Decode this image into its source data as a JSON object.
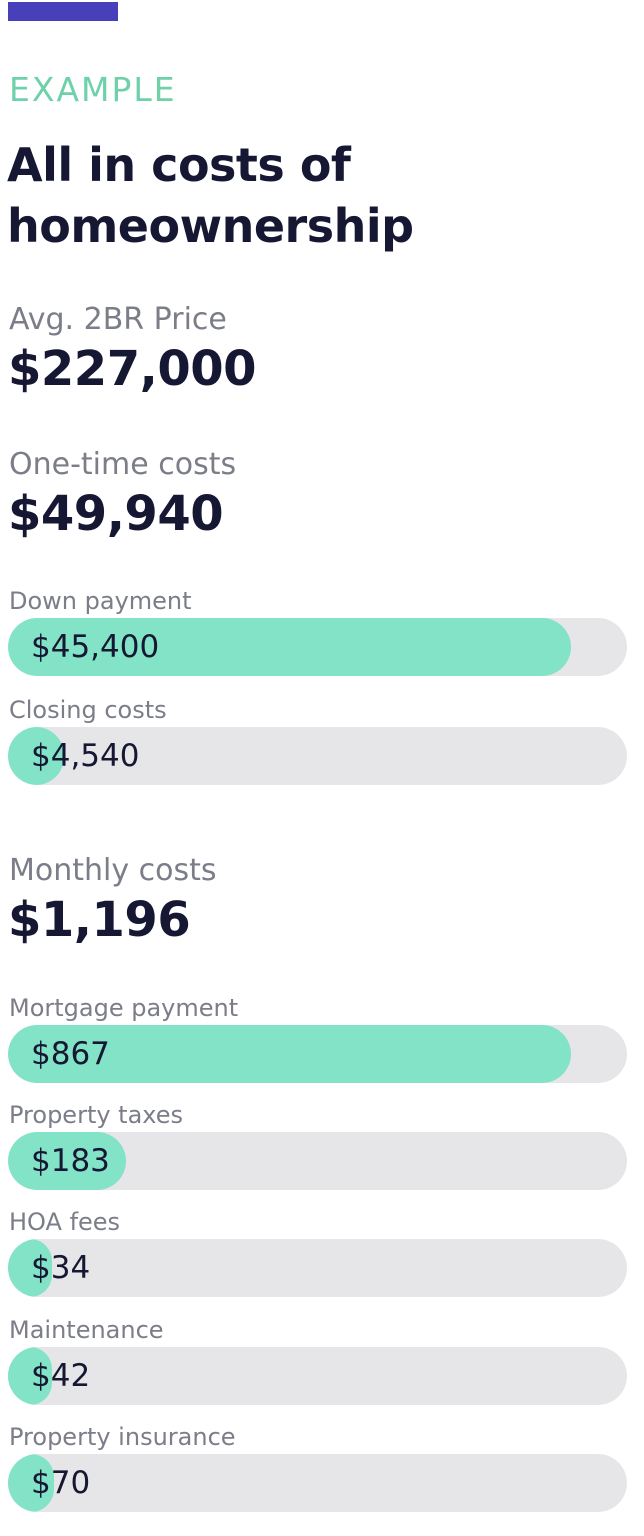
{
  "header": {
    "eyebrow": "EXAMPLE",
    "title_line1": "All in costs of",
    "title_line2": "homeownership"
  },
  "price": {
    "label": "Avg. 2BR Price",
    "value": "$227,000"
  },
  "one_time": {
    "label": "One-time costs",
    "total": "$49,940",
    "items": [
      {
        "label": "Down payment",
        "value": "$45,400",
        "fill_fraction": 0.91
      },
      {
        "label": "Closing costs",
        "value": "$4,540",
        "fill_fraction": 0.09
      }
    ]
  },
  "monthly": {
    "label": "Monthly costs",
    "total": "$1,196",
    "items": [
      {
        "label": "Mortgage payment",
        "value": "$867",
        "fill_fraction": 0.91
      },
      {
        "label": "Property taxes",
        "value": "$183",
        "fill_fraction": 0.19
      },
      {
        "label": "HOA fees",
        "value": "$34",
        "fill_fraction": 0.036
      },
      {
        "label": "Maintenance",
        "value": "$42",
        "fill_fraction": 0.044
      },
      {
        "label": "Property insurance",
        "value": "$70",
        "fill_fraction": 0.074
      }
    ]
  },
  "colors": {
    "accent": "#4840bb",
    "eyebrow": "#6fd1a9",
    "bar_fill": "#83e3c7",
    "bar_track": "#e6e6e8",
    "text_dark": "#161833",
    "text_muted": "#7b7d88"
  }
}
